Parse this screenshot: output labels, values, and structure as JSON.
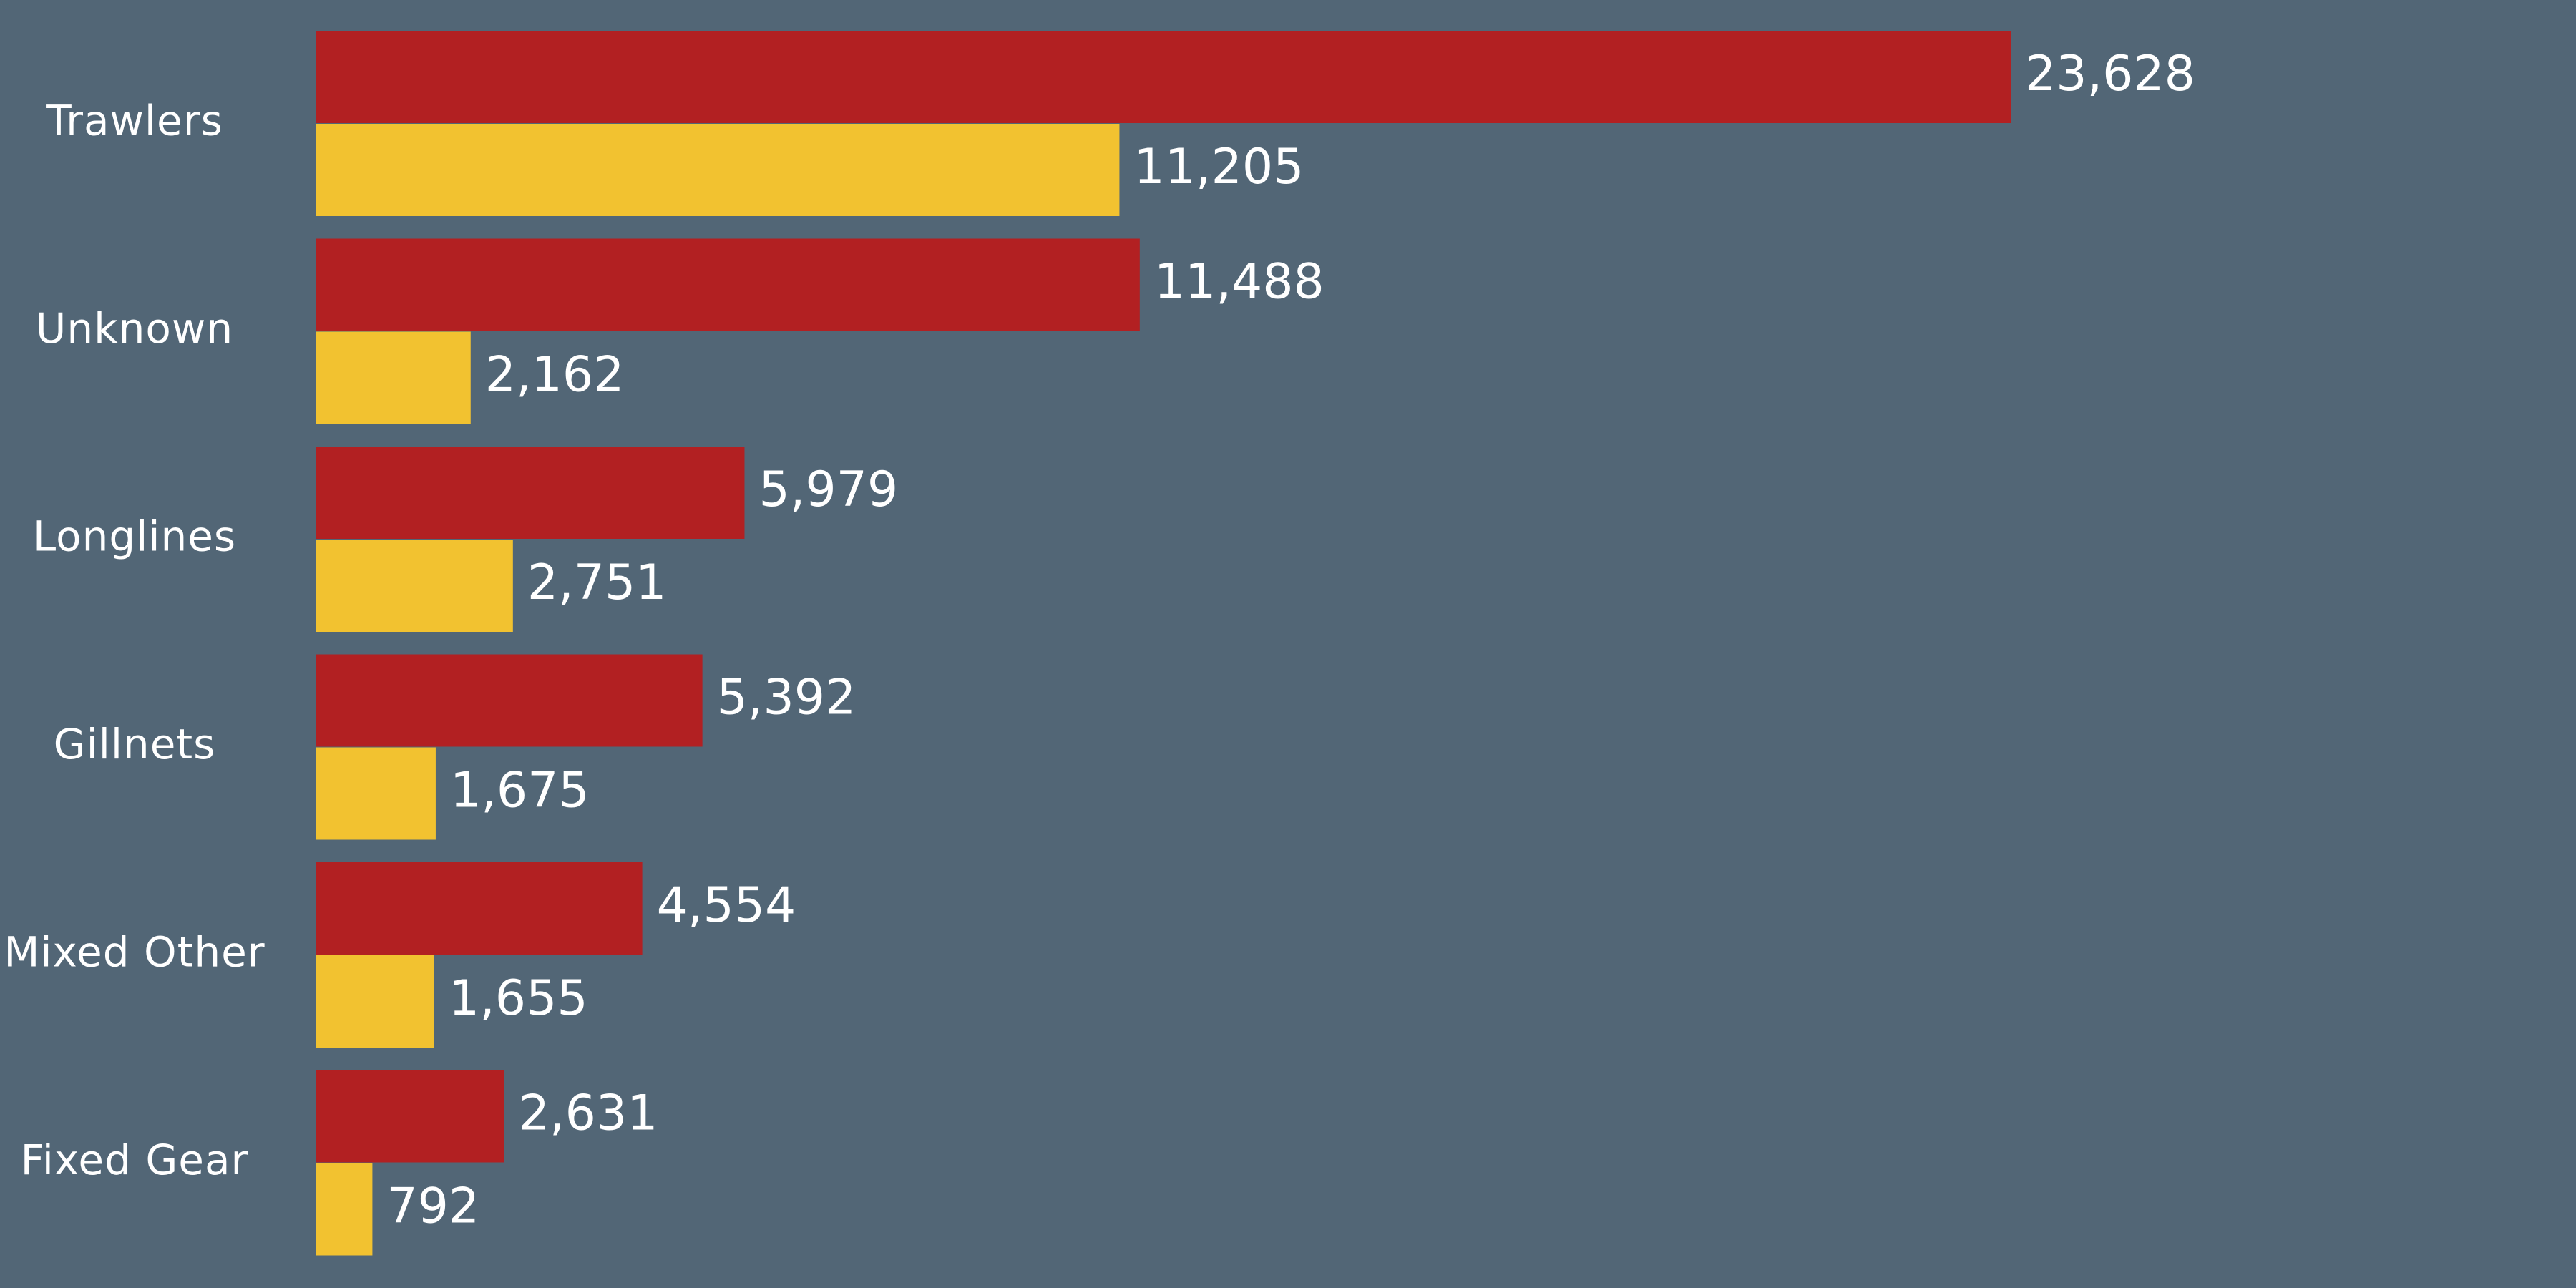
{
  "colors": {
    "background": "#526676",
    "series_1": "#b22022",
    "series_2": "#f2c230",
    "text": "#ffffff"
  },
  "chart_data": {
    "type": "bar",
    "orientation": "horizontal",
    "title": "",
    "xlabel": "",
    "ylabel": "",
    "categories": [
      "Trawlers",
      "Unknown",
      "Longlines",
      "Gillnets",
      "Mixed Other",
      "Fixed Gear"
    ],
    "series": [
      {
        "values": [
          23628,
          11488,
          5979,
          5392,
          4554,
          2631
        ],
        "labels": [
          "23,628",
          "11,488",
          "5,979",
          "5,392",
          "4,554",
          "2,631"
        ],
        "color": "#b22022"
      },
      {
        "values": [
          11205,
          2162,
          2751,
          1675,
          1655,
          792
        ],
        "labels": [
          "11,205",
          "2,162",
          "2,751",
          "1,675",
          "1,655",
          "792"
        ],
        "color": "#f2c230"
      }
    ],
    "xlim": [
      0,
      23628
    ],
    "grid": false,
    "legend": "none",
    "data_labels": true
  }
}
